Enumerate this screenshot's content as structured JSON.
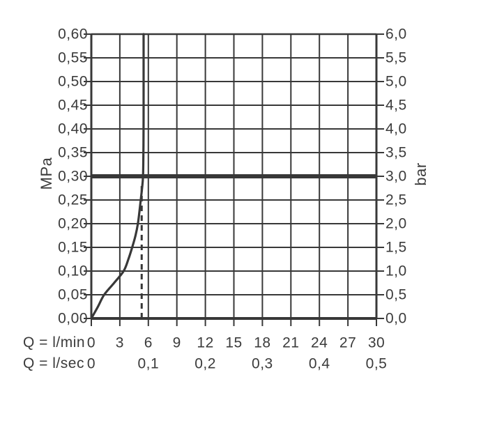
{
  "chart_data": {
    "type": "line",
    "title": "",
    "grid": true,
    "y_left": {
      "label": "MPa",
      "min": 0,
      "max": 0.6,
      "step": 0.05,
      "tick_labels": [
        "0,00",
        "0,05",
        "0,10",
        "0,15",
        "0,20",
        "0,25",
        "0,30",
        "0,35",
        "0,40",
        "0,45",
        "0,50",
        "0,55",
        "0,60"
      ]
    },
    "y_right": {
      "label": "bar",
      "min": 0,
      "max": 6,
      "step": 0.5,
      "tick_labels": [
        "0,0",
        "0,5",
        "1,0",
        "1,5",
        "2,0",
        "2,5",
        "3,0",
        "3,5",
        "4,0",
        "4,5",
        "5,0",
        "5,5",
        "6,0"
      ]
    },
    "x_lmin": {
      "label": "Q = l/min",
      "min": 0,
      "max": 30,
      "step": 3,
      "tick_labels": [
        "0",
        "3",
        "6",
        "9",
        "12",
        "15",
        "18",
        "21",
        "24",
        "27",
        "30"
      ]
    },
    "x_lsec": {
      "label": "Q = l/sec",
      "tick_labels": [
        "0",
        "0,1",
        "0,2",
        "0,3",
        "0,4",
        "0,5"
      ],
      "tick_positions_lmin": [
        0,
        6,
        12,
        18,
        24,
        30
      ]
    },
    "series": [
      {
        "name": "flow-curve",
        "style": "solid",
        "points_lmin_mpa": [
          [
            0,
            0
          ],
          [
            0.7,
            0.025
          ],
          [
            1.35,
            0.05
          ],
          [
            2.4,
            0.075
          ],
          [
            3.4,
            0.1
          ],
          [
            3.9,
            0.125
          ],
          [
            4.3,
            0.15
          ],
          [
            4.65,
            0.175
          ],
          [
            4.9,
            0.2
          ],
          [
            5.06,
            0.225
          ],
          [
            5.2,
            0.25
          ],
          [
            5.34,
            0.275
          ],
          [
            5.44,
            0.3
          ],
          [
            5.48,
            0.35
          ],
          [
            5.5,
            0.42
          ],
          [
            5.5,
            0.6
          ]
        ]
      }
    ],
    "reference_line": {
      "mpa": 0.3,
      "bar": 3.0
    },
    "dashed_guide": {
      "lmin": 5.3,
      "from_mpa": 0,
      "to_mpa": 0.28
    }
  },
  "colors": {
    "ink": "#383838",
    "background": "#ffffff"
  }
}
